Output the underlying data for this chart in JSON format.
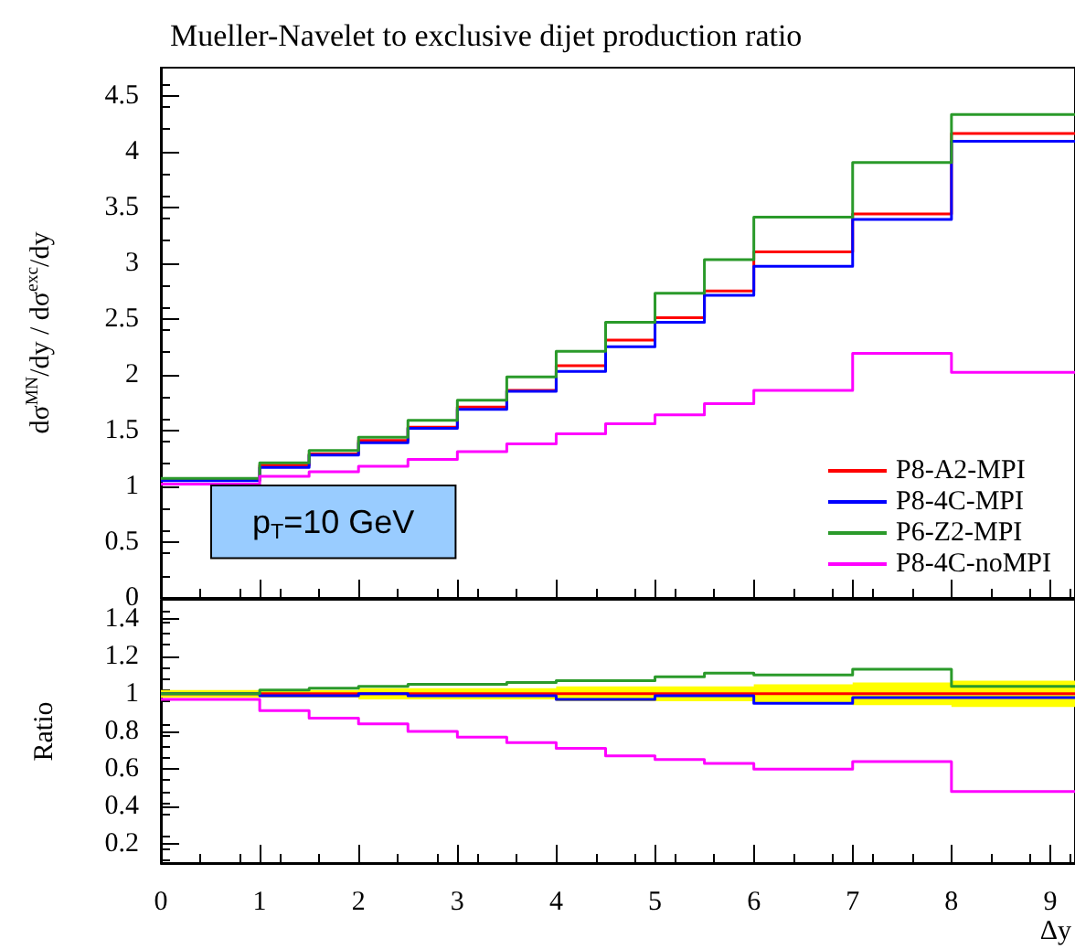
{
  "chart_data": [
    {
      "type": "step",
      "title": "Mueller-Navelet to exclusive dijet production ratio",
      "ylabel": "dσ$^{MN}$/dy / dσ$^{exc}$/dy",
      "x": [
        0,
        1,
        1.5,
        2,
        2.5,
        3,
        3.5,
        4,
        4.5,
        5,
        5.5,
        6,
        7,
        8
      ],
      "series": [
        {
          "name": "P8-A2-MPI",
          "color": "#ff0000",
          "values": [
            1.06,
            1.19,
            1.29,
            1.41,
            1.53,
            1.71,
            1.86,
            2.08,
            2.31,
            2.51,
            2.75,
            3.1,
            3.44,
            4.16
          ]
        },
        {
          "name": "P8-4C-MPI",
          "color": "#0000ff",
          "values": [
            1.05,
            1.17,
            1.28,
            1.39,
            1.52,
            1.69,
            1.85,
            2.03,
            2.25,
            2.47,
            2.71,
            2.97,
            3.39,
            4.09
          ]
        },
        {
          "name": "P6-Z2-MPI",
          "color": "#2a9a2a",
          "values": [
            1.07,
            1.21,
            1.32,
            1.44,
            1.59,
            1.77,
            1.98,
            2.21,
            2.47,
            2.73,
            3.03,
            3.41,
            3.9,
            4.33
          ]
        },
        {
          "name": "P8-4C-noMPI",
          "color": "#ff00ff",
          "values": [
            1.02,
            1.09,
            1.13,
            1.18,
            1.24,
            1.31,
            1.38,
            1.47,
            1.56,
            1.64,
            1.74,
            1.86,
            2.19,
            2.02
          ]
        }
      ],
      "annotations": [
        "p$_{T}$=10 GeV"
      ],
      "xlim": [
        0,
        9.25
      ],
      "xticks": [
        0,
        1,
        2,
        3,
        4,
        5,
        6,
        7,
        8,
        9
      ],
      "ylim": [
        0,
        4.75
      ],
      "yticks": [
        0,
        0.5,
        1,
        1.5,
        2,
        2.5,
        3,
        3.5,
        4,
        4.5
      ],
      "tick_labels": "y",
      "legend": "bottom right",
      "grid": false
    },
    {
      "type": "step",
      "xlabel": "Δy",
      "ylabel": "Ratio",
      "x": [
        0,
        1,
        1.5,
        2,
        2.5,
        3,
        3.5,
        4,
        4.5,
        5,
        5.5,
        6,
        7,
        8
      ],
      "series": [
        {
          "color": "#ff0000",
          "values": [
            1,
            1,
            1,
            1,
            1,
            1,
            1,
            1,
            1,
            1,
            1,
            1,
            1,
            1
          ],
          "lower": [
            0.98,
            0.98,
            0.98,
            0.97,
            0.97,
            0.97,
            0.97,
            0.96,
            0.96,
            0.96,
            0.96,
            0.95,
            0.94,
            0.93
          ],
          "upper": [
            1.02,
            1.02,
            1.02,
            1.03,
            1.03,
            1.03,
            1.03,
            1.04,
            1.04,
            1.04,
            1.04,
            1.05,
            1.06,
            1.07
          ]
        },
        {
          "color": "#0000ff",
          "values": [
            1.0,
            0.99,
            0.99,
            1.0,
            0.99,
            0.99,
            0.99,
            0.97,
            0.97,
            0.99,
            0.99,
            0.95,
            0.98,
            0.98
          ]
        },
        {
          "color": "#2a9a2a",
          "values": [
            1.0,
            1.02,
            1.03,
            1.04,
            1.05,
            1.05,
            1.06,
            1.07,
            1.07,
            1.09,
            1.11,
            1.1,
            1.13,
            1.04
          ]
        },
        {
          "color": "#ff00ff",
          "values": [
            0.97,
            0.91,
            0.87,
            0.84,
            0.8,
            0.77,
            0.74,
            0.71,
            0.67,
            0.65,
            0.63,
            0.6,
            0.64,
            0.48
          ]
        }
      ],
      "xlim": [
        0,
        9.25
      ],
      "xticks": [
        0,
        1,
        2,
        3,
        4,
        5,
        6,
        7,
        8,
        9
      ],
      "ylim": [
        0.1,
        1.5
      ],
      "yticks": [
        0.2,
        0.4,
        0.6,
        0.8,
        1,
        1.2,
        1.4
      ],
      "grid": false
    }
  ]
}
